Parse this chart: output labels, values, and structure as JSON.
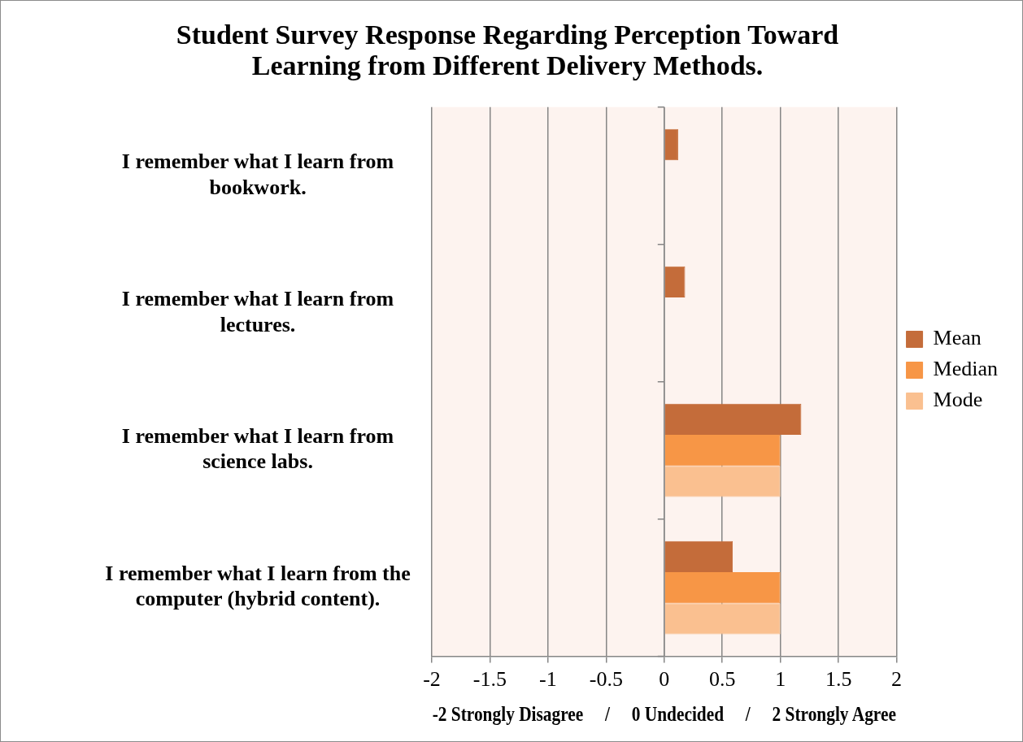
{
  "chart_data": {
    "type": "bar",
    "orientation": "horizontal",
    "title": "Student Survey Response Regarding Perception Toward Learning from Different Delivery Methods.",
    "xlabel": "-2 Strongly Disagree     /     0 Undecided     /     2 Strongly Agree",
    "categories": [
      "I remember what I learn from bookwork.",
      "I remember what I learn from lectures.",
      "I remember what I learn from science labs.",
      "I remember what I learn from the computer (hybrid content)."
    ],
    "series": [
      {
        "name": "Mean",
        "color": "#c46c3a",
        "values": [
          0.12,
          0.18,
          1.18,
          0.59
        ]
      },
      {
        "name": "Median",
        "color": "#f79646",
        "values": [
          0,
          0,
          1,
          1
        ]
      },
      {
        "name": "Mode",
        "color": "#fac090",
        "values": [
          0,
          0,
          1,
          1
        ]
      }
    ],
    "xlim": [
      -2,
      2
    ],
    "xticks": [
      -2,
      -1.5,
      -1,
      -0.5,
      0,
      0.5,
      1,
      1.5,
      2
    ],
    "grid": "x",
    "legend": "right"
  }
}
